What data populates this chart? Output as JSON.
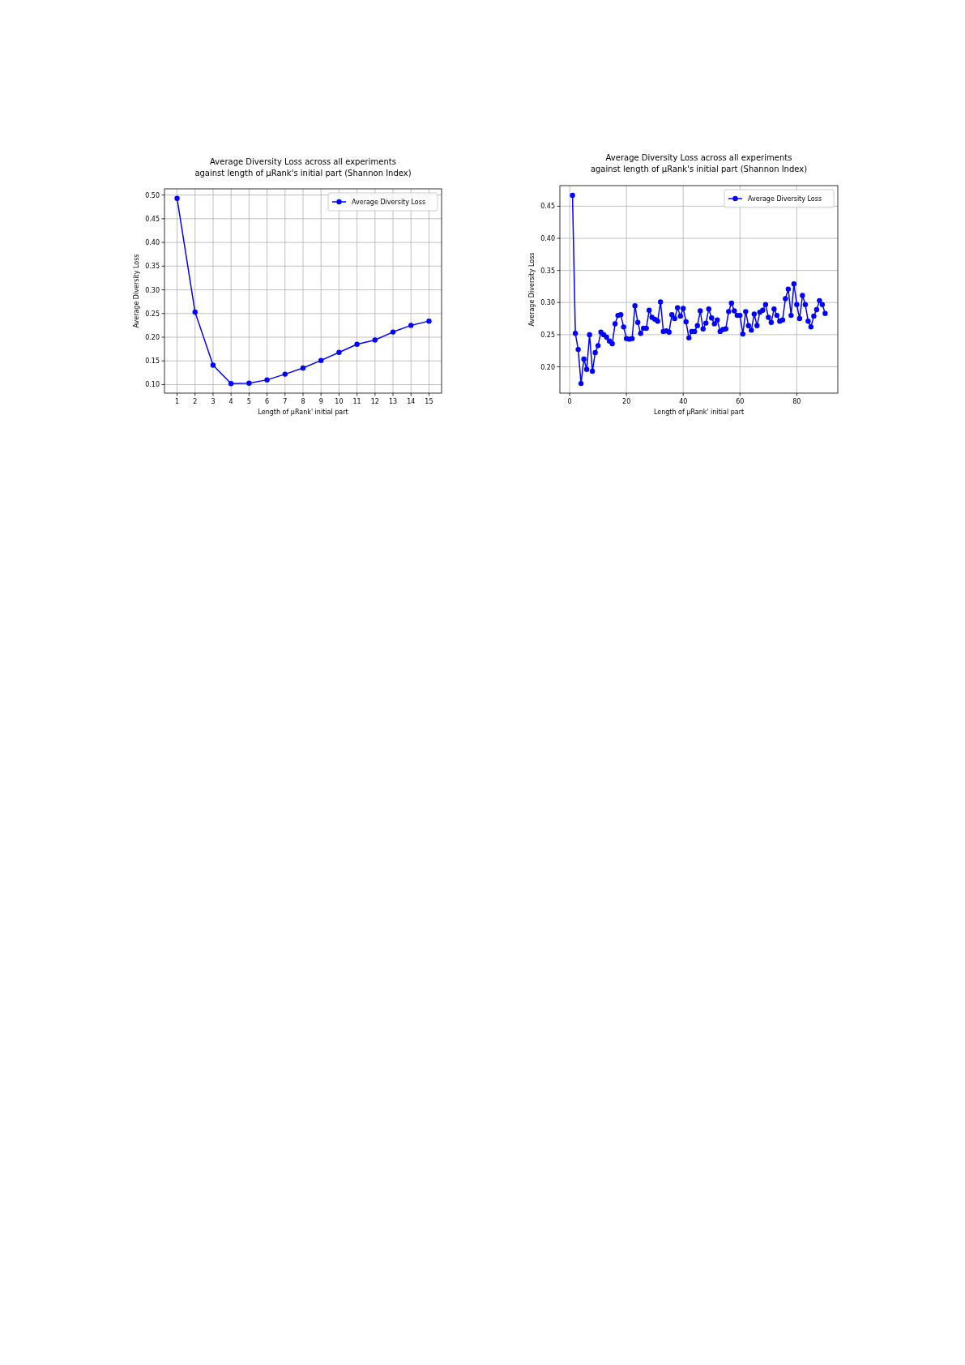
{
  "chart_data": [
    {
      "type": "line",
      "title": "Average Diversity Loss across all experiments\nagainst length of μRank's initial part (Shannon Index)",
      "xlabel": "Length of μRank' initial part",
      "ylabel": "Average Diversity Loss",
      "x": [
        1,
        2,
        3,
        4,
        5,
        6,
        7,
        8,
        9,
        10,
        11,
        12,
        13,
        14,
        15
      ],
      "series": [
        {
          "name": "Average Diversity Loss",
          "color": "#0000ff",
          "values": [
            0.493,
            0.253,
            0.141,
            0.102,
            0.103,
            0.11,
            0.122,
            0.135,
            0.151,
            0.168,
            0.185,
            0.194,
            0.211,
            0.225,
            0.234
          ]
        }
      ],
      "xlim": [
        0.3,
        15.7
      ],
      "ylim": [
        0.082,
        0.513
      ],
      "xticks": [
        1,
        2,
        3,
        4,
        5,
        6,
        7,
        8,
        9,
        10,
        11,
        12,
        13,
        14,
        15
      ],
      "yticks": [
        {
          "value": 0.1,
          "label": "0.10"
        },
        {
          "value": 0.15,
          "label": "0.15"
        },
        {
          "value": 0.2,
          "label": "0.20"
        },
        {
          "value": 0.25,
          "label": "0.25"
        },
        {
          "value": 0.3,
          "label": "0.30"
        },
        {
          "value": 0.35,
          "label": "0.35"
        },
        {
          "value": 0.4,
          "label": "0.40"
        },
        {
          "value": 0.45,
          "label": "0.45"
        },
        {
          "value": 0.5,
          "label": "0.50"
        }
      ],
      "grid": true,
      "legend": "top right",
      "marker": "circle",
      "line_style": "solid"
    },
    {
      "type": "line",
      "title": "Average Diversity Loss across all experiments\nagainst length of μRank's initial part (Shannon Index)",
      "xlabel": "Length of μRank' initial part",
      "ylabel": "Average Diversity Loss",
      "x": [
        1,
        2,
        3,
        4,
        5,
        6,
        7,
        8,
        9,
        10,
        11,
        12,
        13,
        14,
        15,
        16,
        17,
        18,
        19,
        20,
        21,
        22,
        23,
        24,
        25,
        26,
        27,
        28,
        29,
        30,
        31,
        32,
        33,
        34,
        35,
        36,
        37,
        38,
        39,
        40,
        41,
        42,
        43,
        44,
        45,
        46,
        47,
        48,
        49,
        50,
        51,
        52,
        53,
        54,
        55,
        56,
        57,
        58,
        59,
        60,
        61,
        62,
        63,
        64,
        65,
        66,
        67,
        68,
        69,
        70,
        71,
        72,
        73,
        74,
        75,
        76,
        77,
        78,
        79,
        80,
        81,
        82,
        83,
        84,
        85,
        86,
        87,
        88,
        89,
        90
      ],
      "series": [
        {
          "name": "Average Diversity Loss",
          "color": "#0000ff",
          "values": [
            0.467,
            0.252,
            0.227,
            0.174,
            0.212,
            0.196,
            0.25,
            0.193,
            0.222,
            0.233,
            0.254,
            0.25,
            0.246,
            0.24,
            0.236,
            0.267,
            0.28,
            0.281,
            0.262,
            0.244,
            0.243,
            0.244,
            0.295,
            0.269,
            0.252,
            0.26,
            0.26,
            0.288,
            0.277,
            0.274,
            0.271,
            0.301,
            0.255,
            0.256,
            0.254,
            0.281,
            0.275,
            0.292,
            0.279,
            0.291,
            0.27,
            0.245,
            0.255,
            0.255,
            0.264,
            0.287,
            0.259,
            0.268,
            0.29,
            0.276,
            0.267,
            0.273,
            0.255,
            0.258,
            0.259,
            0.286,
            0.299,
            0.287,
            0.28,
            0.28,
            0.251,
            0.286,
            0.264,
            0.257,
            0.282,
            0.264,
            0.285,
            0.288,
            0.297,
            0.277,
            0.269,
            0.29,
            0.28,
            0.271,
            0.273,
            0.306,
            0.321,
            0.28,
            0.329,
            0.297,
            0.275,
            0.311,
            0.297,
            0.271,
            0.262,
            0.279,
            0.289,
            0.303,
            0.297,
            0.283
          ]
        }
      ],
      "xlim": [
        -3.45,
        94.45
      ],
      "ylim": [
        0.159,
        0.482
      ],
      "xticks": [
        0,
        20,
        40,
        60,
        80
      ],
      "yticks": [
        {
          "value": 0.2,
          "label": "0.20"
        },
        {
          "value": 0.25,
          "label": "0.25"
        },
        {
          "value": 0.3,
          "label": "0.30"
        },
        {
          "value": 0.35,
          "label": "0.35"
        },
        {
          "value": 0.4,
          "label": "0.40"
        },
        {
          "value": 0.45,
          "label": "0.45"
        }
      ],
      "grid": true,
      "legend": "top right",
      "marker": "circle",
      "line_style": "solid"
    }
  ]
}
